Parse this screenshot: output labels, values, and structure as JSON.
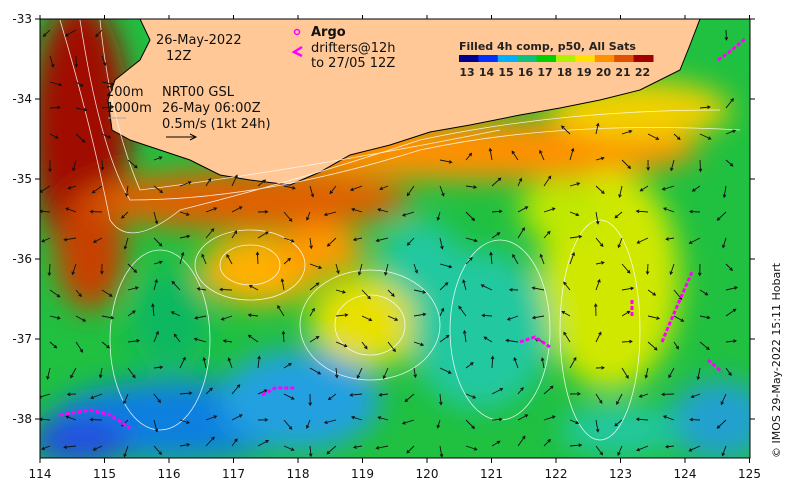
{
  "map": {
    "date": "26-May-2022",
    "time": "12Z",
    "depth_200": "200m",
    "depth_1000": "1000m",
    "model": "NRT00 GSL",
    "model_time": "26-May 06:00Z",
    "scale": "0.5m/s (1kt 24h)",
    "argo": "Argo",
    "drifters": "drifters@12h",
    "drifters_to": "to 27/05 12Z"
  },
  "legend": {
    "title": "Filled 4h comp, p50, All Sats",
    "ticks": [
      "13",
      "14",
      "15",
      "16",
      "17",
      "18",
      "19",
      "20",
      "21",
      "22"
    ],
    "colors": [
      "#00008f",
      "#0030ff",
      "#00b0ff",
      "#10c080",
      "#00d000",
      "#b0f000",
      "#ffe000",
      "#ff9000",
      "#e05000",
      "#a00000"
    ]
  },
  "axes": {
    "lon_ticks": [
      "114",
      "115",
      "116",
      "117",
      "118",
      "119",
      "120",
      "121",
      "122",
      "123",
      "124",
      "125"
    ],
    "lat_ticks": [
      "-33",
      "-34",
      "-35",
      "-36",
      "-37",
      "-38"
    ]
  },
  "colors": {
    "land": "#ffc896",
    "drifter": "#ff00ff"
  },
  "copyright": "© IMOS 29-May-2022 15:11 Hobart"
}
